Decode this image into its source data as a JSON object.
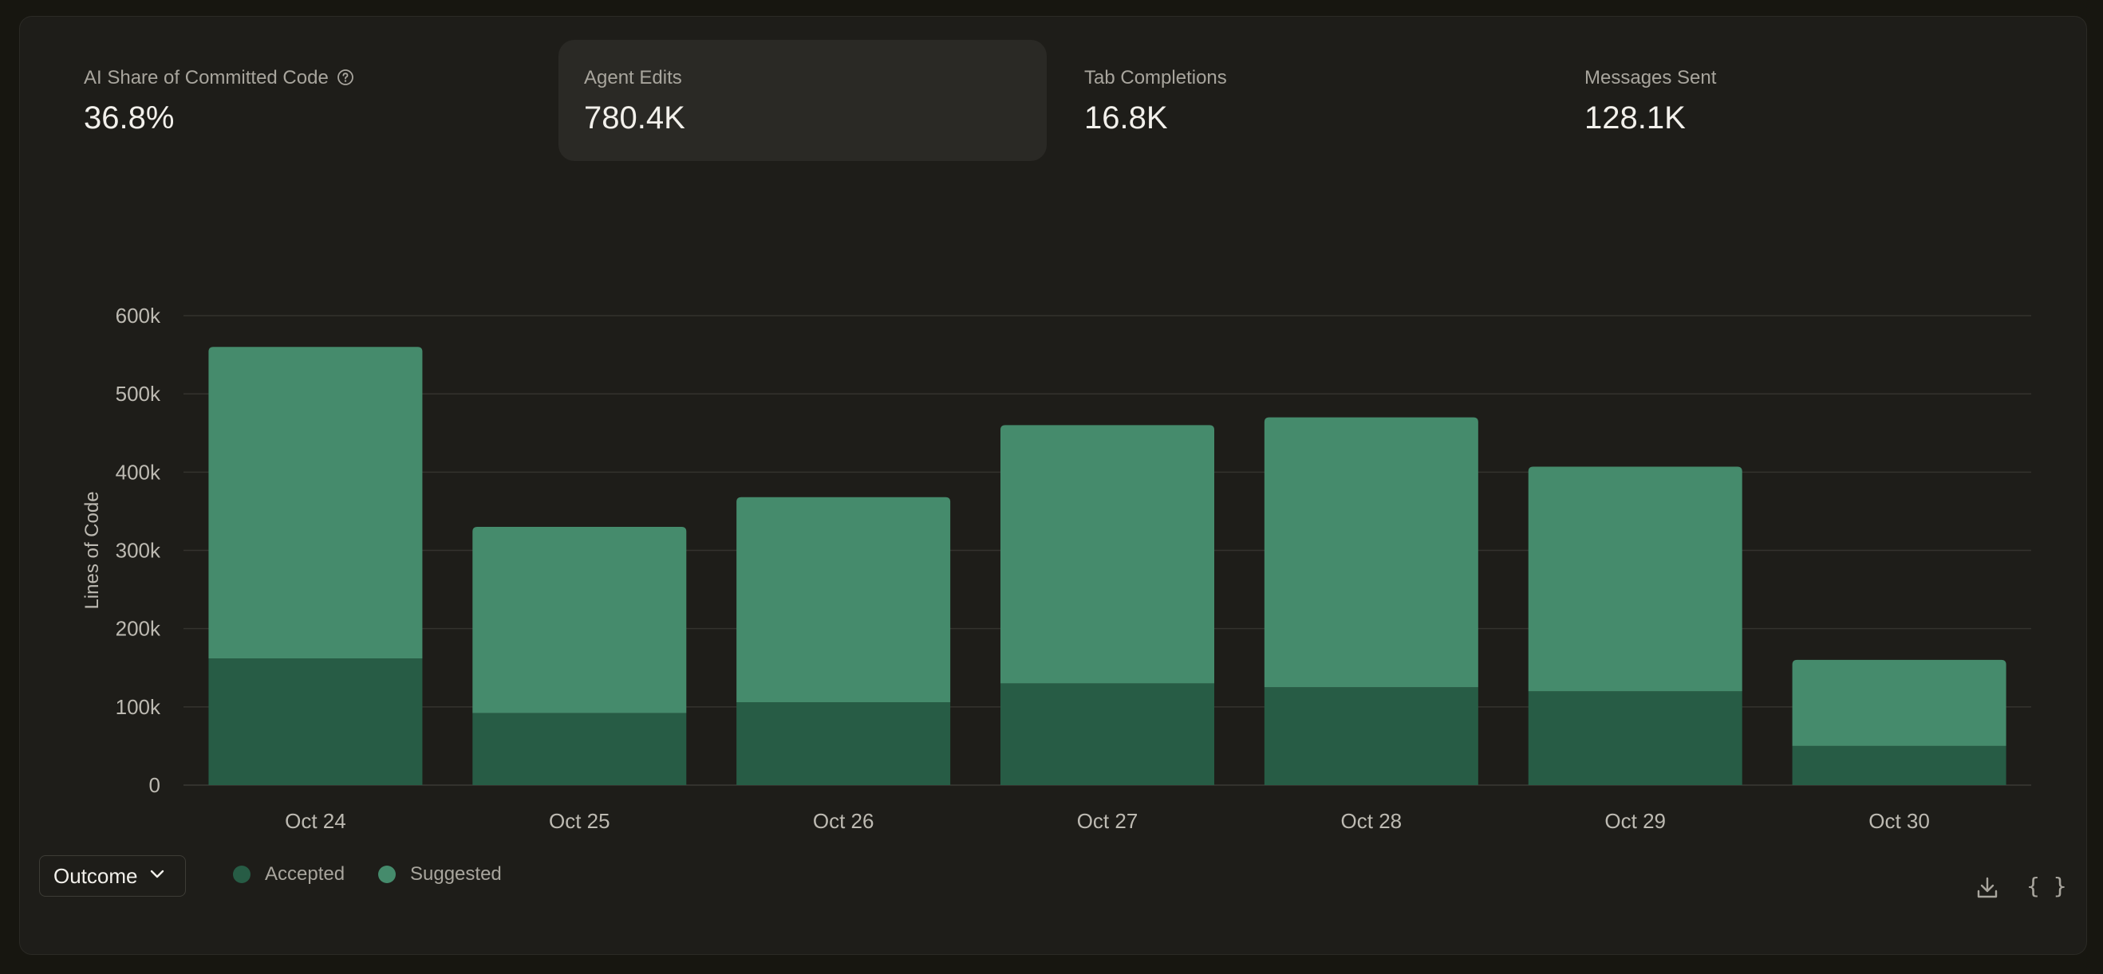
{
  "metrics": [
    {
      "label": "AI Share of Committed Code",
      "value": "36.8%",
      "has_help": true,
      "active": false
    },
    {
      "label": "Agent Edits",
      "value": "780.4K",
      "has_help": false,
      "active": true
    },
    {
      "label": "Tab Completions",
      "value": "16.8K",
      "has_help": false,
      "active": false
    },
    {
      "label": "Messages Sent",
      "value": "128.1K",
      "has_help": false,
      "active": false
    }
  ],
  "chart_data": {
    "type": "bar",
    "stacked": true,
    "categories": [
      "Oct 24",
      "Oct 25",
      "Oct 26",
      "Oct 27",
      "Oct 28",
      "Oct 29",
      "Oct 30"
    ],
    "series": [
      {
        "name": "Accepted",
        "color": "#275c45",
        "values": [
          162000,
          92000,
          106000,
          130000,
          125000,
          120000,
          50000
        ]
      },
      {
        "name": "Suggested",
        "color": "#458b6c",
        "values": [
          398000,
          238000,
          262000,
          330000,
          345000,
          287000,
          110000
        ]
      }
    ],
    "ylabel": "Lines of Code",
    "ylim": [
      0,
      600000
    ],
    "yticks": [
      "0",
      "100k",
      "200k",
      "300k",
      "400k",
      "500k",
      "600k"
    ],
    "grid": true
  },
  "controls": {
    "group_by_label": "Outcome"
  },
  "legend": [
    {
      "label": "Accepted",
      "color": "#275c45"
    },
    {
      "label": "Suggested",
      "color": "#458b6c"
    }
  ],
  "toolbar": {
    "download_icon": "download-icon",
    "json_icon": "code-braces-icon",
    "json_glyph": "{ }"
  }
}
